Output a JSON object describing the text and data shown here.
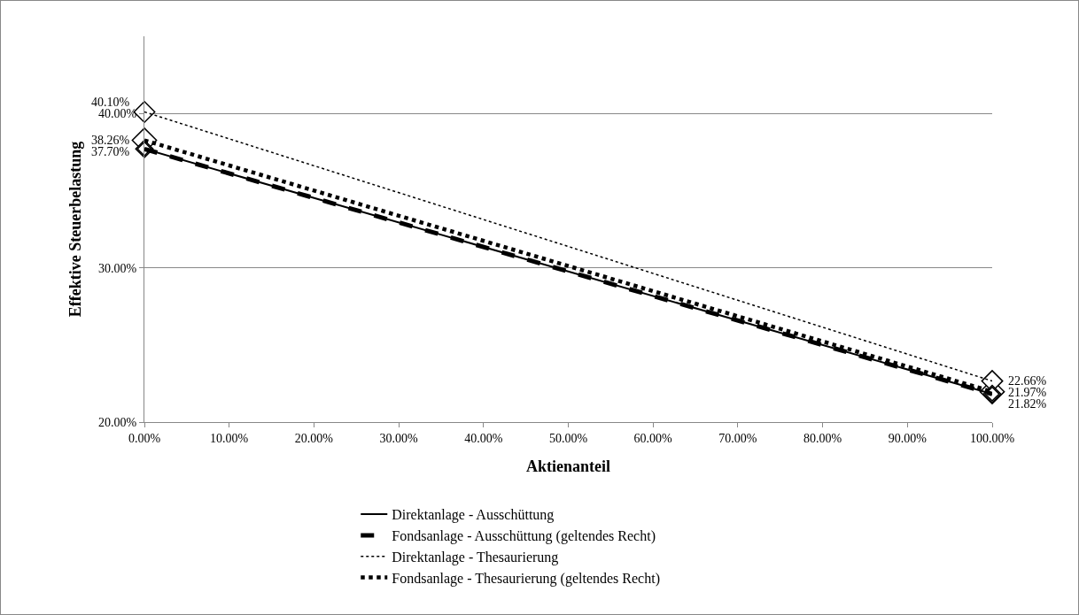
{
  "chart_data": {
    "type": "line",
    "xlabel": "Aktienanteil",
    "ylabel": "Effektive Steuerbelastung",
    "x": [
      0,
      100
    ],
    "xlim": [
      0,
      100
    ],
    "xticks": [
      {
        "value": 0,
        "label": "0.00%"
      },
      {
        "value": 10,
        "label": "10.00%"
      },
      {
        "value": 20,
        "label": "20.00%"
      },
      {
        "value": 30,
        "label": "30.00%"
      },
      {
        "value": 40,
        "label": "40.00%"
      },
      {
        "value": 50,
        "label": "50.00%"
      },
      {
        "value": 60,
        "label": "60.00%"
      },
      {
        "value": 70,
        "label": "70.00%"
      },
      {
        "value": 80,
        "label": "80.00%"
      },
      {
        "value": 90,
        "label": "90.00%"
      },
      {
        "value": 100,
        "label": "100.00%"
      }
    ],
    "ylim": [
      20,
      45
    ],
    "yticks": [
      {
        "value": 20,
        "label": "20.00%"
      },
      {
        "value": 30,
        "label": "30.00%"
      },
      {
        "value": 40,
        "label": "40.00%"
      }
    ],
    "grid": "y",
    "legend": "bottom",
    "marker": "diamond",
    "series": [
      {
        "name": "Direktanlage - Ausschüttung",
        "color": "#000000",
        "line_style": "solid",
        "values": [
          37.7,
          21.82
        ],
        "value_labels": [
          "37.70%",
          "21.82%"
        ]
      },
      {
        "name": "Fondsanlage - Ausschüttung (geltendes Recht)",
        "color": "#000000",
        "line_style": "dashed",
        "values": [
          37.7,
          21.82
        ],
        "value_labels": [
          null,
          null
        ]
      },
      {
        "name": "Direktanlage - Thesaurierung",
        "color": "#000000",
        "line_style": "dotted",
        "values": [
          40.1,
          22.66
        ],
        "value_labels": [
          "40.10%",
          "22.66%"
        ]
      },
      {
        "name": "Fondsanlage - Thesaurierung (geltendes Recht)",
        "color": "#000000",
        "line_style": "dotted",
        "values": [
          38.26,
          21.97
        ],
        "value_labels": [
          "38.26%",
          "21.97%"
        ]
      }
    ]
  }
}
